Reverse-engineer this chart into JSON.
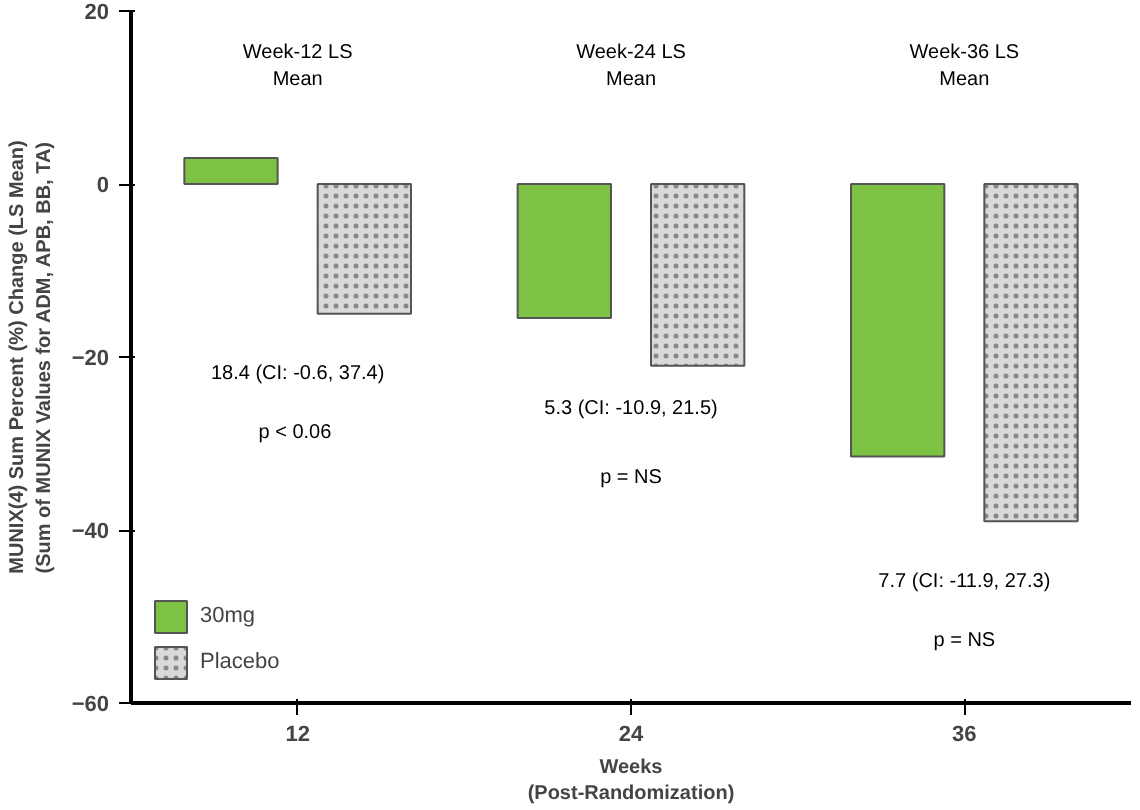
{
  "chart_data": {
    "type": "bar",
    "xlabel": "Weeks\n(Post-Randomization)",
    "ylabel": "MUNIX(4) Sum Percent (%) Change (LS Mean)\n(Sum of MUNIX Values for ADM, APB, BB, TA)",
    "categories": [
      "12",
      "24",
      "36"
    ],
    "series": [
      {
        "name": "30mg",
        "color": "#7dc242",
        "values": [
          3,
          -15.5,
          -31.5
        ]
      },
      {
        "name": "Placebo",
        "color": "#d9d9d9",
        "values": [
          -15,
          -21,
          -39
        ]
      }
    ],
    "ylim": [
      -60,
      20
    ],
    "yticks": [
      -60,
      -40,
      -20,
      0,
      20
    ],
    "grid": false,
    "legend": "bottom left",
    "annotations": [
      "Week-12 LS\nMean",
      "Week-24 LS\nMean",
      "Week-36 LS\nMean",
      "18.4 (CI: -0.6, 37.4)",
      "p <  0.06",
      "5.3 (CI: -10.9, 21.5)",
      "p = NS",
      "7.7 (CI: -11.9, 27.3)",
      "p = NS"
    ]
  }
}
